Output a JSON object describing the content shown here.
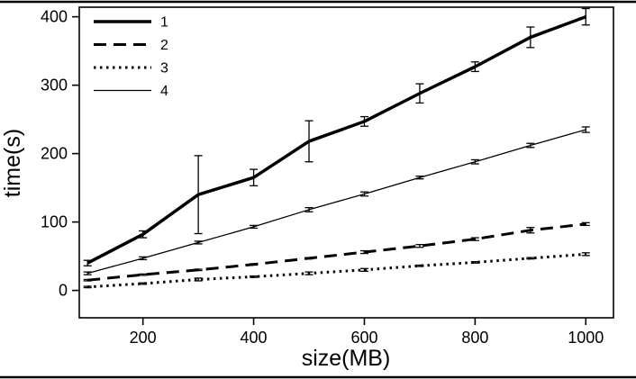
{
  "figure": {
    "xlabel": "size(MB)",
    "ylabel": "time(s)"
  },
  "chart_data": {
    "type": "line",
    "title": "",
    "xlabel": "size(MB)",
    "ylabel": "time(s)",
    "x": [
      100,
      200,
      300,
      400,
      500,
      600,
      700,
      800,
      900,
      1000
    ],
    "series": [
      {
        "name": "1",
        "style": "solid-thick",
        "values": [
          40,
          82,
          140,
          165,
          218,
          247,
          288,
          327,
          370,
          400
        ],
        "errors": [
          4,
          5,
          57,
          12,
          30,
          7,
          14,
          7,
          15,
          12
        ]
      },
      {
        "name": "2",
        "style": "dashed",
        "values": [
          15,
          23,
          30,
          38,
          47,
          56,
          65,
          75,
          88,
          97
        ],
        "errors": [
          1,
          1,
          1,
          1,
          1,
          2,
          2,
          2,
          4,
          2
        ]
      },
      {
        "name": "3",
        "style": "dotted",
        "values": [
          5,
          10,
          16,
          20,
          25,
          30,
          36,
          41,
          47,
          53
        ],
        "errors": [
          1,
          1,
          2,
          1,
          2,
          2,
          1,
          1,
          1,
          2
        ]
      },
      {
        "name": "4",
        "style": "solid-thin",
        "values": [
          25,
          47,
          70,
          93,
          118,
          141,
          165,
          188,
          212,
          235
        ],
        "errors": [
          2,
          2,
          2,
          2,
          3,
          3,
          2,
          3,
          3,
          4
        ]
      }
    ],
    "xticks": [
      200,
      400,
      600,
      800,
      1000
    ],
    "yticks": [
      0,
      100,
      200,
      300,
      400
    ],
    "xlim": [
      85,
      1050
    ],
    "ylim": [
      -40,
      414
    ],
    "grid": false,
    "legend_position": "top-left",
    "line_color": "#000000",
    "background": "#ffffff"
  }
}
